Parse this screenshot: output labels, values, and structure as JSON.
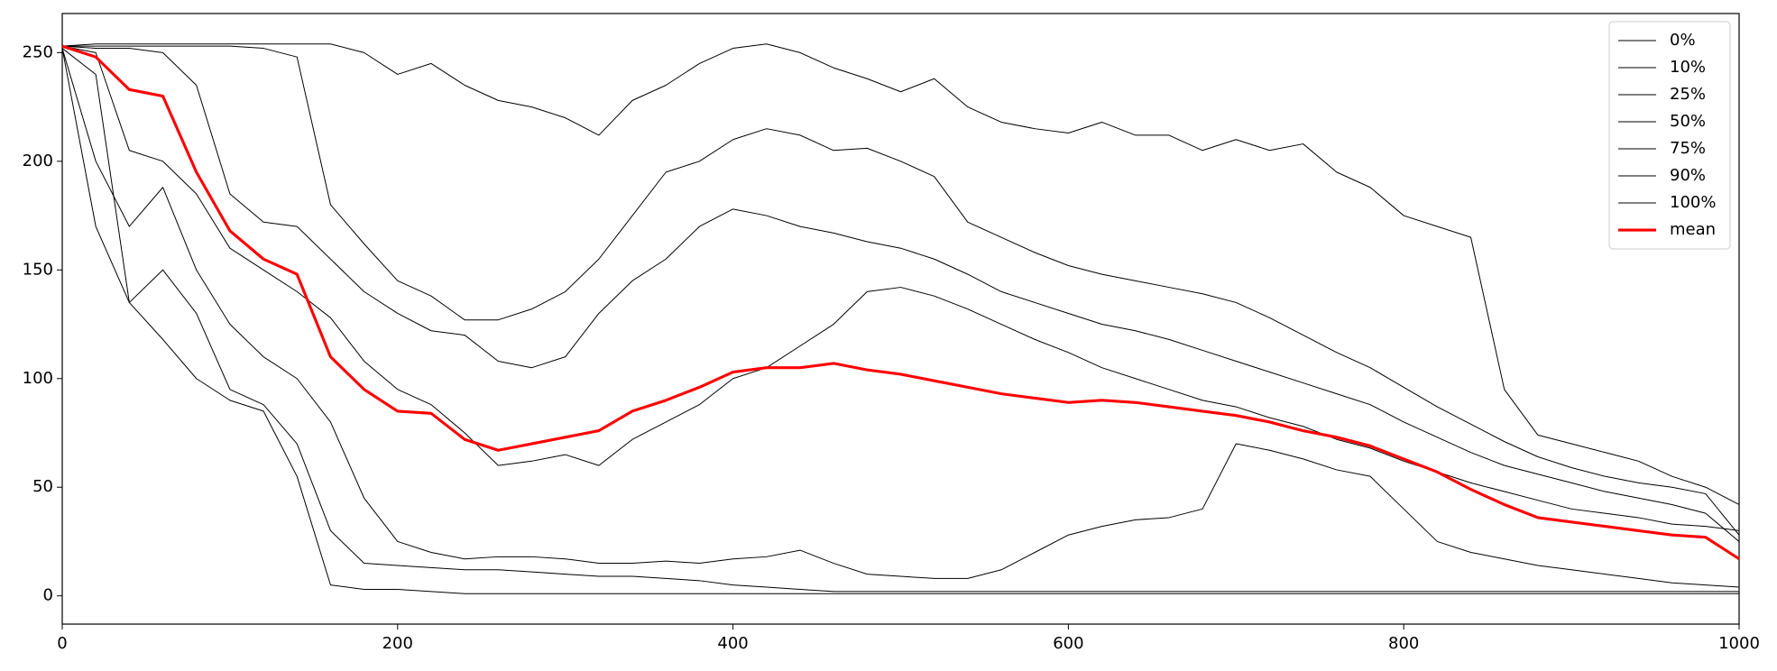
{
  "chart_data": {
    "type": "line",
    "x": [
      0,
      20,
      40,
      60,
      80,
      100,
      120,
      140,
      160,
      180,
      200,
      220,
      240,
      260,
      280,
      300,
      320,
      340,
      360,
      380,
      400,
      420,
      440,
      460,
      480,
      500,
      520,
      540,
      560,
      580,
      600,
      620,
      640,
      660,
      680,
      700,
      720,
      740,
      760,
      780,
      800,
      820,
      840,
      860,
      880,
      900,
      920,
      940,
      960,
      980,
      1000
    ],
    "xlim": [
      0,
      1000
    ],
    "xticks": [
      0,
      200,
      400,
      600,
      800,
      1000
    ],
    "ylim": [
      -13,
      268
    ],
    "yticks": [
      0,
      50,
      100,
      150,
      200,
      250
    ],
    "legend": "upper right",
    "series": [
      {
        "name": "0%",
        "color": "#000000",
        "linewidth": 0.8,
        "values": [
          252,
          240,
          135,
          118,
          100,
          90,
          85,
          55,
          5,
          3,
          3,
          2,
          1,
          1,
          1,
          1,
          1,
          1,
          1,
          1,
          1,
          1,
          1,
          1,
          1,
          1,
          1,
          1,
          1,
          1,
          1,
          1,
          1,
          1,
          1,
          1,
          1,
          1,
          1,
          1,
          1,
          1,
          1,
          1,
          1,
          1,
          1,
          1,
          1,
          1,
          1
        ]
      },
      {
        "name": "10%",
        "color": "#000000",
        "linewidth": 0.8,
        "values": [
          252,
          170,
          135,
          150,
          130,
          95,
          88,
          70,
          30,
          15,
          14,
          13,
          12,
          12,
          11,
          10,
          9,
          9,
          8,
          7,
          5,
          4,
          3,
          2,
          2,
          2,
          2,
          2,
          2,
          2,
          2,
          2,
          2,
          2,
          2,
          2,
          2,
          2,
          2,
          2,
          2,
          2,
          2,
          2,
          2,
          2,
          2,
          2,
          2,
          2,
          2
        ]
      },
      {
        "name": "25%",
        "color": "#000000",
        "linewidth": 0.8,
        "values": [
          252,
          200,
          170,
          188,
          150,
          125,
          110,
          100,
          80,
          45,
          25,
          20,
          17,
          18,
          18,
          17,
          15,
          15,
          16,
          15,
          17,
          18,
          21,
          15,
          10,
          9,
          8,
          8,
          12,
          20,
          28,
          32,
          35,
          36,
          40,
          70,
          67,
          63,
          58,
          55,
          40,
          25,
          20,
          17,
          14,
          12,
          10,
          8,
          6,
          5,
          4
        ]
      },
      {
        "name": "50%",
        "color": "#000000",
        "linewidth": 0.8,
        "values": [
          253,
          250,
          205,
          200,
          185,
          160,
          150,
          140,
          128,
          108,
          95,
          88,
          75,
          60,
          62,
          65,
          60,
          72,
          80,
          88,
          100,
          105,
          115,
          125,
          140,
          142,
          138,
          132,
          125,
          118,
          112,
          105,
          100,
          95,
          90,
          87,
          82,
          78,
          72,
          68,
          62,
          57,
          52,
          48,
          44,
          40,
          38,
          36,
          33,
          32,
          30
        ]
      },
      {
        "name": "75%",
        "color": "#000000",
        "linewidth": 0.8,
        "values": [
          253,
          252,
          252,
          250,
          235,
          185,
          172,
          170,
          155,
          140,
          130,
          122,
          120,
          108,
          105,
          110,
          130,
          145,
          155,
          170,
          178,
          175,
          170,
          167,
          163,
          160,
          155,
          148,
          140,
          135,
          130,
          125,
          122,
          118,
          113,
          108,
          103,
          98,
          93,
          88,
          80,
          73,
          66,
          60,
          56,
          52,
          48,
          45,
          42,
          38,
          25
        ]
      },
      {
        "name": "90%",
        "color": "#000000",
        "linewidth": 0.8,
        "values": [
          253,
          253,
          253,
          253,
          253,
          253,
          252,
          248,
          180,
          162,
          145,
          138,
          127,
          127,
          132,
          140,
          155,
          175,
          195,
          200,
          210,
          215,
          212,
          205,
          206,
          200,
          193,
          172,
          165,
          158,
          152,
          148,
          145,
          142,
          139,
          135,
          128,
          120,
          112,
          105,
          96,
          87,
          79,
          71,
          64,
          59,
          55,
          52,
          50,
          47,
          28
        ]
      },
      {
        "name": "100%",
        "color": "#000000",
        "linewidth": 0.8,
        "values": [
          253,
          254,
          254,
          254,
          254,
          254,
          254,
          254,
          254,
          250,
          240,
          245,
          235,
          228,
          225,
          220,
          212,
          228,
          235,
          245,
          252,
          254,
          250,
          243,
          238,
          232,
          238,
          225,
          218,
          215,
          213,
          218,
          212,
          212,
          205,
          210,
          205,
          208,
          195,
          188,
          175,
          170,
          165,
          95,
          74,
          70,
          66,
          62,
          55,
          50,
          42
        ]
      },
      {
        "name": "mean",
        "color": "#ff0000",
        "linewidth": 2.5,
        "values": [
          253,
          248,
          233,
          230,
          195,
          168,
          155,
          148,
          110,
          95,
          85,
          84,
          72,
          67,
          70,
          73,
          76,
          85,
          90,
          96,
          103,
          105,
          105,
          107,
          104,
          102,
          99,
          96,
          93,
          91,
          89,
          90,
          89,
          87,
          85,
          83,
          80,
          76,
          73,
          69,
          63,
          57,
          49,
          42,
          36,
          34,
          32,
          30,
          28,
          27,
          17
        ]
      }
    ]
  }
}
